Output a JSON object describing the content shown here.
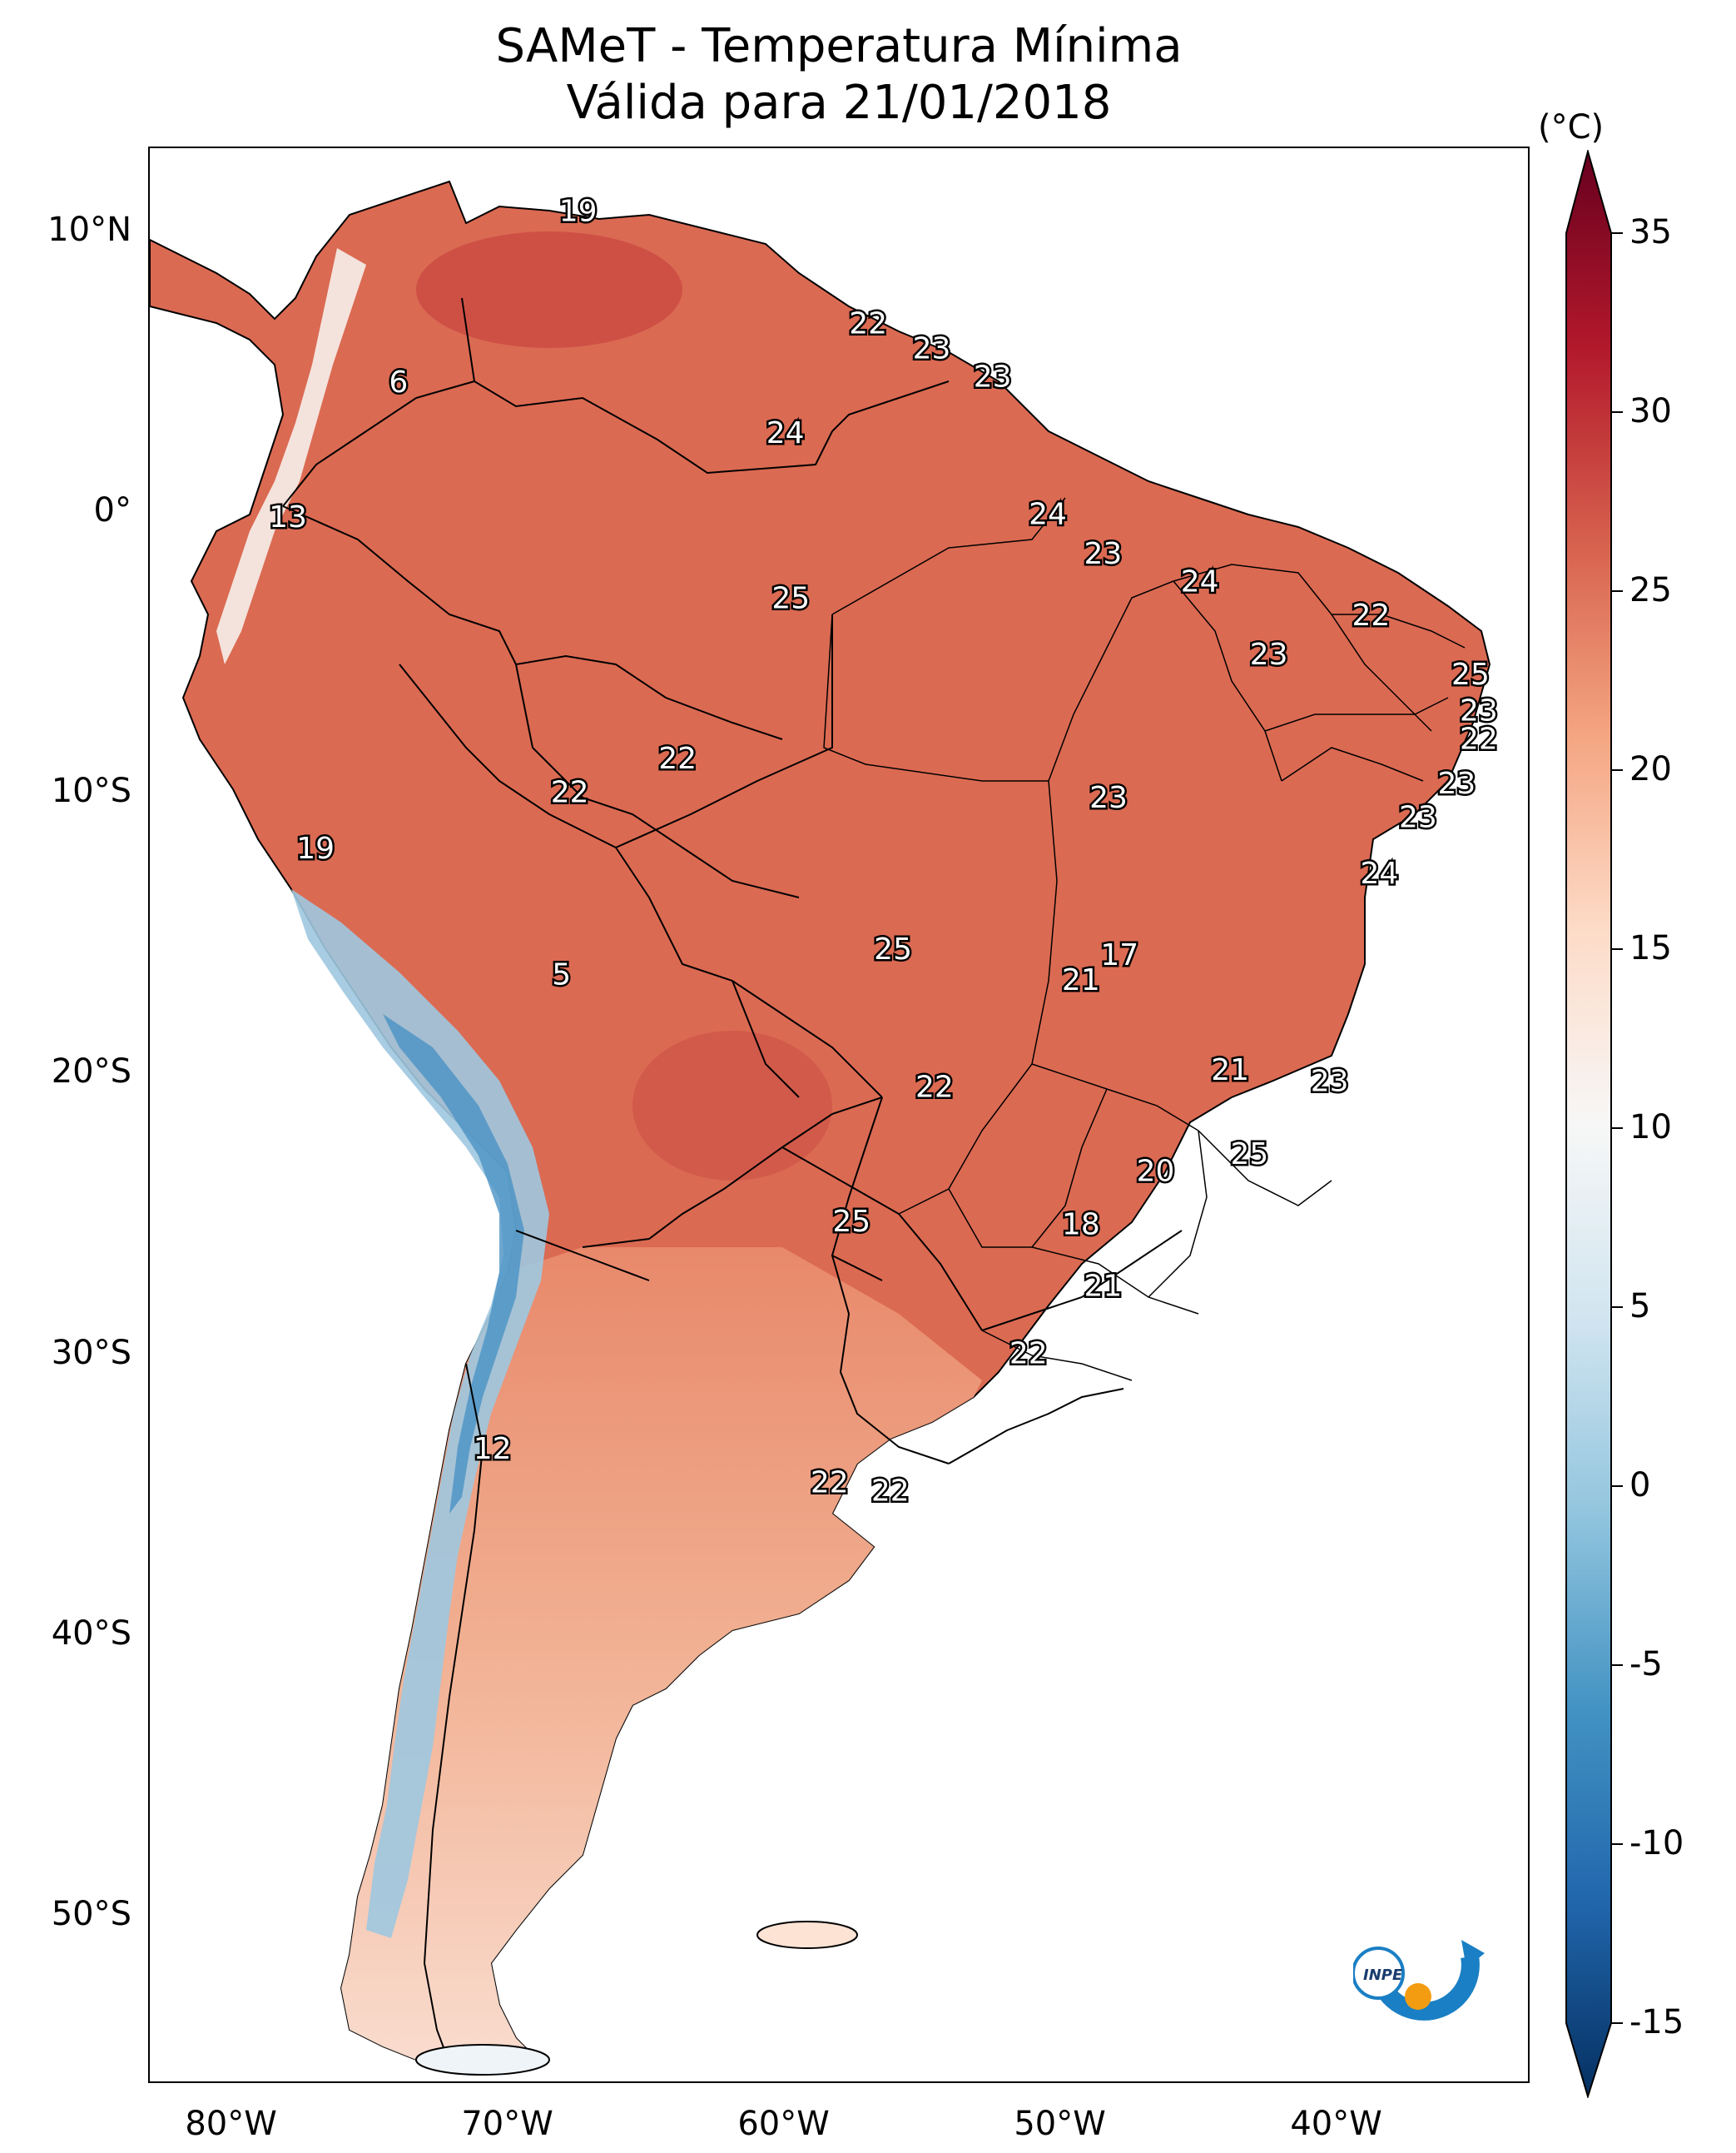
{
  "title": {
    "line1": "SAMeT - Temperatura Mínima",
    "line2": "Válida para 21/01/2018"
  },
  "map": {
    "region": "South America",
    "extent": {
      "lon_min": -83,
      "lon_max": -33,
      "lat_min": -56,
      "lat_max": 13
    },
    "latitude_labels": [
      "10°N",
      "0°",
      "10°S",
      "20°S",
      "30°S",
      "40°S",
      "50°S"
    ],
    "latitude_values": [
      10,
      0,
      -10,
      -20,
      -30,
      -40,
      -50
    ],
    "longitude_labels": [
      "80°W",
      "70°W",
      "60°W",
      "50°W",
      "40°W"
    ],
    "longitude_values": [
      -80,
      -70,
      -60,
      -50,
      -40
    ],
    "point_values": [
      {
        "value": "19",
        "lon": -67.5,
        "lat": 10.7
      },
      {
        "value": "6",
        "lon": -74.0,
        "lat": 4.6
      },
      {
        "value": "13",
        "lon": -78.0,
        "lat": -0.2
      },
      {
        "value": "22",
        "lon": -57.0,
        "lat": 6.7
      },
      {
        "value": "23",
        "lon": -54.7,
        "lat": 5.8
      },
      {
        "value": "23",
        "lon": -52.5,
        "lat": 4.8
      },
      {
        "value": "24",
        "lon": -60.0,
        "lat": 2.8
      },
      {
        "value": "24",
        "lon": -50.5,
        "lat": -0.1
      },
      {
        "value": "23",
        "lon": -48.5,
        "lat": -1.5
      },
      {
        "value": "24",
        "lon": -45.0,
        "lat": -2.5
      },
      {
        "value": "22",
        "lon": -38.8,
        "lat": -3.7
      },
      {
        "value": "25",
        "lon": -59.8,
        "lat": -3.1
      },
      {
        "value": "23",
        "lon": -42.5,
        "lat": -5.1
      },
      {
        "value": "25",
        "lon": -35.2,
        "lat": -5.8
      },
      {
        "value": "23",
        "lon": -34.9,
        "lat": -7.1
      },
      {
        "value": "22",
        "lon": -34.9,
        "lat": -8.1
      },
      {
        "value": "23",
        "lon": -35.7,
        "lat": -9.7
      },
      {
        "value": "22",
        "lon": -63.9,
        "lat": -8.8
      },
      {
        "value": "22",
        "lon": -67.8,
        "lat": -10.0
      },
      {
        "value": "23",
        "lon": -48.3,
        "lat": -10.2
      },
      {
        "value": "23",
        "lon": -37.1,
        "lat": -10.9
      },
      {
        "value": "24",
        "lon": -38.5,
        "lat": -12.9
      },
      {
        "value": "19",
        "lon": -77.0,
        "lat": -12.0
      },
      {
        "value": "25",
        "lon": -56.1,
        "lat": -15.6
      },
      {
        "value": "17",
        "lon": -47.9,
        "lat": -15.8
      },
      {
        "value": "21",
        "lon": -49.3,
        "lat": -16.7
      },
      {
        "value": "5",
        "lon": -68.1,
        "lat": -16.5
      },
      {
        "value": "22",
        "lon": -54.6,
        "lat": -20.5
      },
      {
        "value": "21",
        "lon": -43.9,
        "lat": -19.9
      },
      {
        "value": "23",
        "lon": -40.3,
        "lat": -20.3
      },
      {
        "value": "25",
        "lon": -43.2,
        "lat": -22.9
      },
      {
        "value": "20",
        "lon": -46.6,
        "lat": -23.5
      },
      {
        "value": "25",
        "lon": -57.6,
        "lat": -25.3
      },
      {
        "value": "18",
        "lon": -49.3,
        "lat": -25.4
      },
      {
        "value": "21",
        "lon": -48.5,
        "lat": -27.6
      },
      {
        "value": "22",
        "lon": -51.2,
        "lat": -30.0
      },
      {
        "value": "12",
        "lon": -70.6,
        "lat": -33.4
      },
      {
        "value": "22",
        "lon": -58.4,
        "lat": -34.6
      },
      {
        "value": "22",
        "lon": -56.2,
        "lat": -34.9
      }
    ]
  },
  "colorbar": {
    "unit": "(°C)",
    "min": -15,
    "max": 35,
    "tick_labels": [
      "35",
      "30",
      "25",
      "20",
      "15",
      "10",
      "5",
      "0",
      "-5",
      "-10",
      "-15"
    ],
    "tick_values": [
      35,
      30,
      25,
      20,
      15,
      10,
      5,
      0,
      -5,
      -10,
      -15
    ],
    "colors": [
      "#053061",
      "#2166ac",
      "#4393c3",
      "#92c5de",
      "#d1e5f0",
      "#f7f7f7",
      "#fddbc7",
      "#f4a582",
      "#d6604d",
      "#b2182b",
      "#67001f"
    ]
  },
  "logo": {
    "text": "INPE",
    "colors": [
      "#1a7fc4",
      "#f39c12"
    ]
  }
}
